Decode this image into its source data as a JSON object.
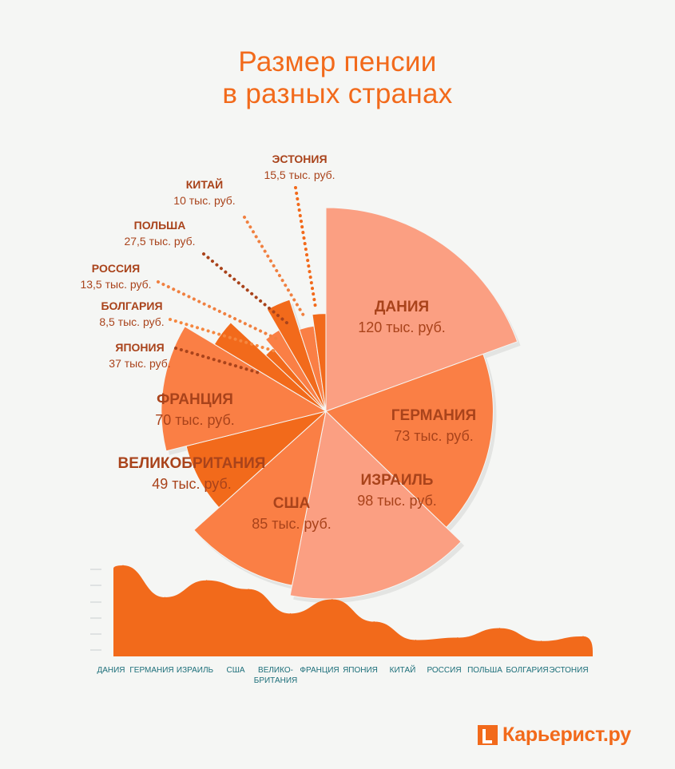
{
  "title": {
    "line1": "Размер пенсии",
    "line2": "в разных странах"
  },
  "colors": {
    "accent": "#f26a1b",
    "label": "#a9431b",
    "axis_label": "#1d6f7a",
    "pie_light": "#fb9f82",
    "pie_mid": "#fa7f45",
    "pie_dark": "#f26a1b"
  },
  "chart_data": [
    {
      "type": "pie",
      "title": "Размер пенсии в разных странах",
      "unit": "тыс. руб.",
      "categories": [
        "ДАНИЯ",
        "ГЕРМАНИЯ",
        "ИЗРАИЛЬ",
        "США",
        "ВЕЛИКОБРИТАНИЯ",
        "ФРАНЦИЯ",
        "ЯПОНИЯ",
        "БОЛГАРИЯ",
        "РОССИЯ",
        "ПОЛЬША",
        "КИТАЙ",
        "ЭСТОНИЯ"
      ],
      "values": [
        120,
        73,
        98,
        85,
        49,
        70,
        37,
        8.5,
        13.5,
        27.5,
        10,
        15.5
      ],
      "value_labels": [
        "120 тыс. руб.",
        "73 тыс. руб.",
        "98 тыс. руб.",
        "85 тыс. руб.",
        "49 тыс. руб.",
        "70 тыс. руб.",
        "37 тыс. руб.",
        "8,5 тыс. руб.",
        "13,5 тыс. руб.",
        "27,5 тыс. руб.",
        "10 тыс. руб.",
        "15,5 тыс. руб."
      ]
    },
    {
      "type": "area",
      "categories": [
        "ДАНИЯ",
        "ГЕРМАНИЯ",
        "ИЗРАИЛЬ",
        "США",
        "ВЕЛИКО-\nБРИТАНИЯ",
        "ФРАНЦИЯ",
        "ЯПОНИЯ",
        "КИТАЙ",
        "РОССИЯ",
        "ПОЛЬША",
        "БОЛГАРИЯ",
        "ЭСТОНИЯ"
      ],
      "values": [
        120,
        73,
        98,
        85,
        49,
        70,
        37,
        10,
        13.5,
        27.5,
        8.5,
        15.5
      ],
      "grid": false
    }
  ],
  "logo": {
    "text": "Карьерист.ру"
  }
}
